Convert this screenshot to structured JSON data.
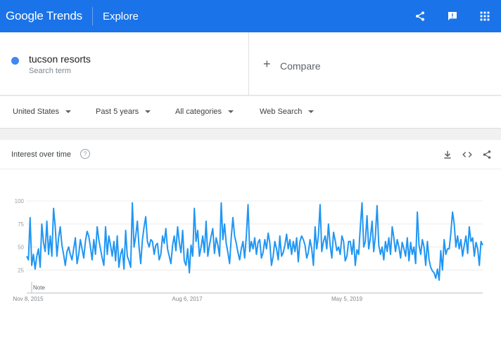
{
  "header": {
    "logo_google": "Google",
    "logo_trends": "Trends",
    "nav": "Explore",
    "icons": [
      "share-icon",
      "feedback-icon",
      "apps-grid-icon"
    ]
  },
  "search": {
    "term": "tucson resorts",
    "term_type": "Search term",
    "term_color": "#4285f4",
    "compare_label": "Compare"
  },
  "filters": {
    "region": "United States",
    "time": "Past 5 years",
    "category": "All categories",
    "property": "Web Search"
  },
  "card": {
    "title": "Interest over time",
    "icons": [
      "download-icon",
      "embed-icon",
      "share-icon"
    ]
  },
  "chart_data": {
    "type": "line",
    "series": [
      {
        "name": "tucson resorts",
        "color": "#2196f3",
        "values": [
          40,
          36,
          82,
          30,
          42,
          26,
          40,
          48,
          28,
          75,
          55,
          45,
          78,
          42,
          62,
          40,
          92,
          72,
          40,
          60,
          72,
          52,
          42,
          30,
          45,
          50,
          42,
          36,
          48,
          60,
          32,
          42,
          58,
          48,
          38,
          56,
          67,
          62,
          50,
          36,
          58,
          42,
          72,
          58,
          48,
          38,
          30,
          72,
          42,
          62,
          52,
          40,
          56,
          35,
          62,
          28,
          42,
          48,
          26,
          68,
          40,
          35,
          28,
          98,
          50,
          62,
          78,
          50,
          32,
          58,
          72,
          83,
          56,
          50,
          58,
          56,
          42,
          52,
          54,
          36,
          42,
          62,
          54,
          70,
          48,
          40,
          32,
          52,
          62,
          46,
          72,
          55,
          44,
          68,
          35,
          30,
          48,
          22,
          52,
          40,
          92,
          56,
          68,
          40,
          50,
          62,
          44,
          78,
          40,
          52,
          62,
          70,
          43,
          60,
          52,
          40,
          98,
          58,
          75,
          54,
          44,
          32,
          60,
          82,
          62,
          54,
          44,
          36,
          48,
          56,
          38,
          62,
          96,
          45,
          56,
          48,
          60,
          42,
          55,
          58,
          38,
          44,
          58,
          48,
          65,
          55,
          30,
          40,
          56,
          48,
          36,
          62,
          40,
          44,
          52,
          64,
          48,
          58,
          42,
          56,
          45,
          60,
          34,
          56,
          62,
          58,
          52,
          38,
          44,
          58,
          48,
          30,
          72,
          48,
          62,
          96,
          45,
          56,
          62,
          48,
          75,
          52,
          38,
          66,
          57,
          46,
          50,
          42,
          62,
          56,
          35,
          40,
          56,
          56,
          42,
          58,
          30,
          47,
          42,
          72,
          98,
          50,
          56,
          84,
          48,
          60,
          78,
          45,
          62,
          95,
          52,
          42,
          50,
          36,
          56,
          45,
          60,
          42,
          72,
          60,
          45,
          58,
          50,
          38,
          55,
          48,
          40,
          60,
          35,
          55,
          42,
          50,
          32,
          88,
          52,
          42,
          58,
          50,
          30,
          56,
          36,
          28,
          24,
          22,
          16,
          26,
          14,
          46,
          25,
          58,
          42,
          48,
          48,
          65,
          88,
          75,
          50,
          62,
          48,
          58,
          40,
          52,
          62,
          43,
          72,
          56,
          60,
          40,
          55,
          48,
          30,
          56,
          52
        ]
      }
    ],
    "x_ticks": [
      "Nov 8, 2015",
      "Aug 6, 2017",
      "May 5, 2019"
    ],
    "y_ticks": [
      25,
      50,
      75,
      100
    ],
    "ylim": [
      0,
      100
    ],
    "annotation": "Note",
    "grid": true
  }
}
